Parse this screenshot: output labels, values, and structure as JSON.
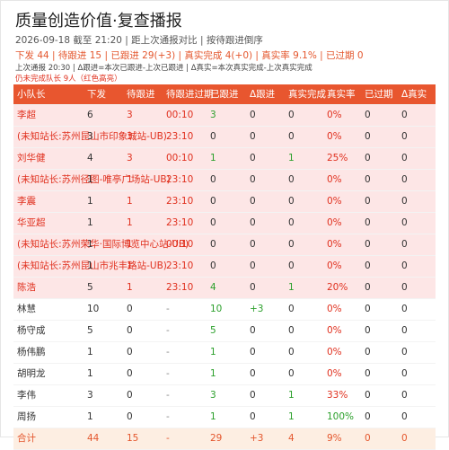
{
  "header": {
    "title": "质量创造价值·复查播报",
    "subtitle": "2026-09-18 截至 21:20 | 距上次通报对比 | 按待跟进倒序",
    "summary": "下发 44 | 待跟进 15 | 已跟进 29(+3) | 真实完成 4(+0) | 真实率 9.1% | 已过期 0",
    "note": "上次通报 20:30 | Δ跟进=本次已跟进-上次已跟进 | Δ真实=本次真实完成-上次真实完成",
    "remaining": "仍未完成队长 9人（红色高亮）"
  },
  "table": {
    "columns": [
      "小队长",
      "下发",
      "待跟进",
      "待跟进过期",
      "已跟进",
      "Δ跟进",
      "真实完成",
      "真实率",
      "已过期",
      "Δ真实"
    ],
    "rows": [
      [
        "李超",
        6,
        3,
        "00:10",
        3,
        0,
        0,
        "0%",
        0,
        0
      ],
      [
        "(未知站长:苏州昆山市印象城站-UB)",
        3,
        3,
        "23:10",
        0,
        0,
        0,
        "0%",
        0,
        0
      ],
      [
        "刘华健",
        4,
        3,
        "00:10",
        1,
        0,
        1,
        "25%",
        0,
        0
      ],
      [
        "(未知站长:苏州径图-唯亭广场站-UB)",
        1,
        1,
        "23:10",
        0,
        0,
        0,
        "0%",
        0,
        0
      ],
      [
        "李震",
        1,
        1,
        "23:10",
        0,
        0,
        0,
        "0%",
        0,
        0
      ],
      [
        "华亚超",
        1,
        1,
        "23:10",
        0,
        0,
        0,
        "0%",
        0,
        0
      ],
      [
        "(未知站长:苏州荣华·国际博览中心站-UB)",
        1,
        1,
        "00:10",
        0,
        0,
        0,
        "0%",
        0,
        0
      ],
      [
        "(未知站长:苏州昆山市兆丰路站-UB)",
        1,
        1,
        "23:10",
        0,
        0,
        0,
        "0%",
        0,
        0
      ],
      [
        "陈浩",
        5,
        1,
        "23:10",
        4,
        0,
        1,
        "20%",
        0,
        0
      ],
      [
        "林慧",
        10,
        0,
        "-",
        10,
        "+3",
        0,
        "0%",
        0,
        0
      ],
      [
        "杨守成",
        5,
        0,
        "-",
        5,
        0,
        0,
        "0%",
        0,
        0
      ],
      [
        "杨伟鹏",
        1,
        0,
        "-",
        1,
        0,
        0,
        "0%",
        0,
        0
      ],
      [
        "胡明龙",
        1,
        0,
        "-",
        1,
        0,
        0,
        "0%",
        0,
        0
      ],
      [
        "李伟",
        3,
        0,
        "-",
        3,
        0,
        1,
        "33%",
        0,
        0
      ],
      [
        "周扬",
        1,
        0,
        "-",
        1,
        0,
        1,
        "100%",
        0,
        0
      ]
    ],
    "total": [
      "合计",
      44,
      15,
      "-",
      29,
      "+3",
      4,
      "9%",
      0,
      0
    ]
  }
}
